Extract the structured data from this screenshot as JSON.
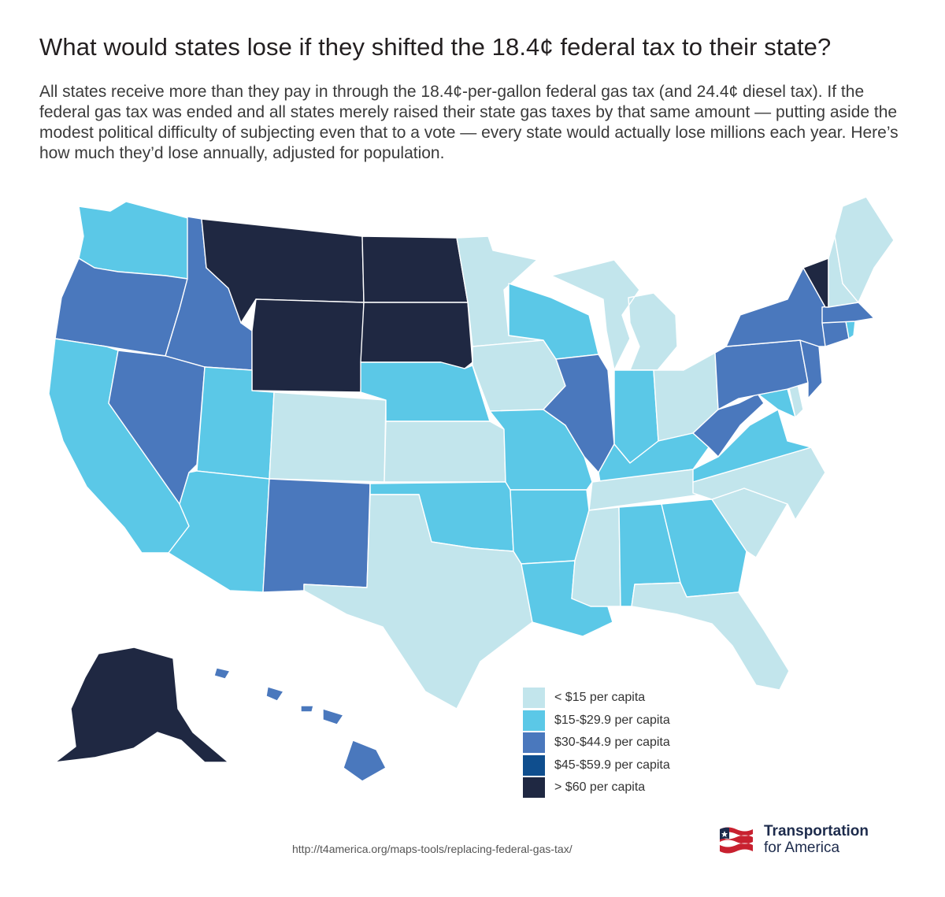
{
  "title": "What would states lose if they shifted the 18.4¢ federal tax to their state?",
  "subtitle": "All states receive more than they pay in through the 18.4¢-per-gallon federal gas tax (and 24.4¢ diesel tax). If the federal gas tax was ended and all states merely raised their state gas taxes by that same amount — putting aside the modest political difficulty of subjecting even that to a vote — every state would actually lose millions each year. Here’s how much they’d lose annually, adjusted for population.",
  "colors": {
    "lt15": "#c2e5ec",
    "r15_29": "#5bc8e7",
    "r30_44": "#4a78bd",
    "r45_59": "#0f4e8e",
    "gt60": "#1f2842"
  },
  "legend": [
    {
      "key": "lt15",
      "label": "< $15 per capita"
    },
    {
      "key": "r15_29",
      "label": "$15-$29.9 per capita"
    },
    {
      "key": "r30_44",
      "label": "$30-$44.9 per capita"
    },
    {
      "key": "r45_59",
      "label": "$45-$59.9 per capita"
    },
    {
      "key": "gt60",
      "label": "> $60 per capita"
    }
  ],
  "states": {
    "WA": "r15_29",
    "OR": "r30_44",
    "CA": "r15_29",
    "ID": "r30_44",
    "NV": "r30_44",
    "MT": "gt60",
    "WY": "gt60",
    "UT": "r15_29",
    "AZ": "r15_29",
    "CO": "lt15",
    "NM": "r30_44",
    "ND": "gt60",
    "SD": "gt60",
    "NE": "r15_29",
    "KS": "lt15",
    "OK": "r15_29",
    "TX": "lt15",
    "MN": "lt15",
    "IA": "lt15",
    "MO": "r15_29",
    "AR": "r15_29",
    "LA": "r15_29",
    "WI": "r15_29",
    "IL": "r30_44",
    "MI": "lt15",
    "IN": "r15_29",
    "OH": "lt15",
    "KY": "r15_29",
    "TN": "lt15",
    "MS": "lt15",
    "AL": "r15_29",
    "GA": "r15_29",
    "FL": "lt15",
    "SC": "lt15",
    "NC": "lt15",
    "VA": "r15_29",
    "WV": "r30_44",
    "MD": "r15_29",
    "DE": "lt15",
    "PA": "r30_44",
    "NJ": "r30_44",
    "NY": "r30_44",
    "CT": "r30_44",
    "RI": "r15_29",
    "MA": "r30_44",
    "VT": "gt60",
    "NH": "lt15",
    "ME": "lt15",
    "AK": "gt60",
    "HI": "r30_44"
  },
  "source": "http://t4america.org/maps-tools/replacing-federal-gas-tax/",
  "brand": {
    "line1": "Transportation",
    "line2": "for America"
  }
}
